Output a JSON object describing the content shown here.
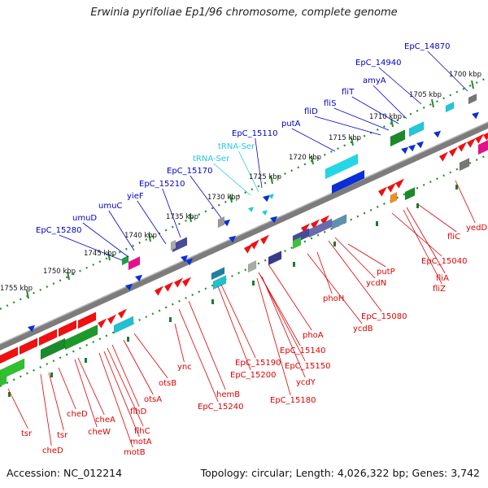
{
  "title": "Erwinia pyrifoliae Ep1/96 chromosome, complete genome",
  "footer": {
    "accession": "Accession: NC_012214",
    "info": "Topology: circular; Length: 4,026,322 bp; Genes: 3,742"
  },
  "kbp_labels": [
    "1700 kbp",
    "1705 kbp",
    "1710 kbp",
    "1715 kbp",
    "1720 kbp",
    "1725 kbp",
    "1730 kbp",
    "1735 kbp",
    "1740 kbp",
    "1745 kbp",
    "1750 kbp",
    "1755 kbp"
  ],
  "top_labels": [
    "EpC_14870",
    "EpC_14940",
    "amyA",
    "fliT",
    "fliS",
    "fliD",
    "putA",
    "EpC_15110",
    "tRNA-Ser",
    "tRNA-Ser",
    "EpC_15170",
    "EpC_15210",
    "yieF",
    "umuC",
    "umuD",
    "EpC_15280"
  ],
  "bottom_labels": [
    "yedD",
    "fliC",
    "EpC_15040",
    "fliA",
    "fliZ",
    "putP",
    "ycdN",
    "EpC_15080",
    "phoH",
    "ycdB",
    "phoA",
    "EpC_15140",
    "EpC_15150",
    "ycdY",
    "EpC_15180",
    "EpC_15190",
    "EpC_15200",
    "hemB",
    "EpC_15240",
    "ync",
    "otsB",
    "otsA",
    "flhD",
    "flhC",
    "motA",
    "motB",
    "cheA",
    "cheW",
    "cheD",
    "cheD",
    "tsr",
    "tsr"
  ],
  "colors": {
    "forward_label": "#0000cc",
    "trna_label": "#22c8e0",
    "reverse_label": "#dd0000",
    "backbone": "#808080",
    "dots": "#2a8a2a"
  }
}
